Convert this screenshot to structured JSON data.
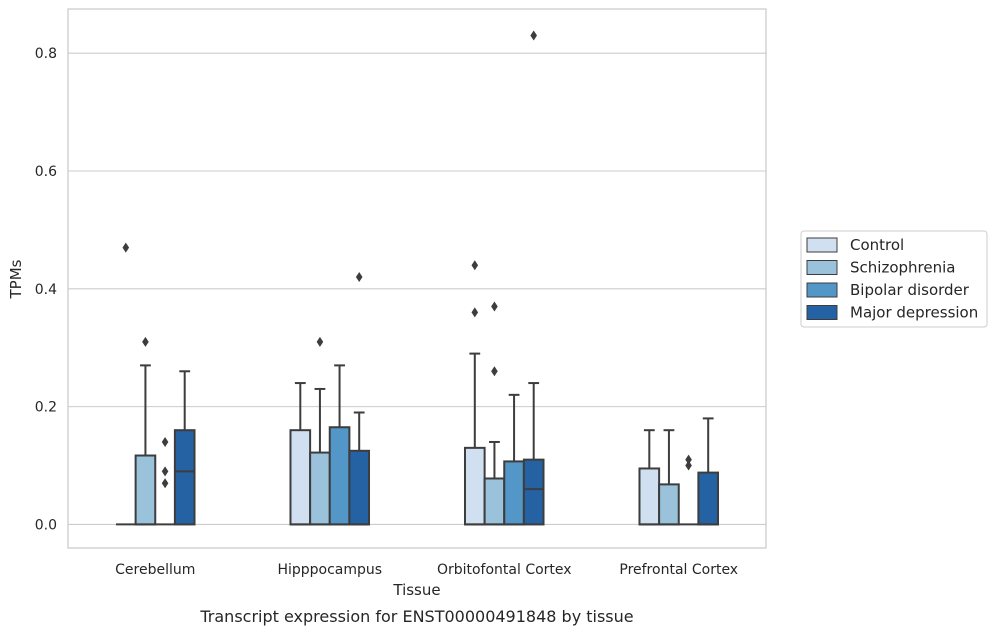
{
  "caption": "Transcript expression for ENST00000491848 by tissue",
  "chart_data": {
    "type": "box",
    "title": "",
    "xlabel": "Tissue",
    "ylabel": "TPMs",
    "ylim": [
      -0.04,
      0.875
    ],
    "yticks": [
      0.0,
      0.2,
      0.4,
      0.6,
      0.8
    ],
    "ytick_labels": [
      "0.0",
      "0.2",
      "0.4",
      "0.6",
      "0.8"
    ],
    "grid": "horizontal",
    "legend_placement": "right-outside",
    "categories": [
      "Cerebellum",
      "Hipppocampus",
      "Orbitofontal Cortex",
      "Prefrontal Cortex"
    ],
    "series": [
      {
        "name": "Control",
        "color": "#d1e0f0",
        "boxes": [
          {
            "whislo": 0,
            "q1": 0,
            "med": 0,
            "q3": 0,
            "whishi": 0,
            "fliers": [
              0.47
            ]
          },
          {
            "whislo": 0,
            "q1": 0,
            "med": 0,
            "q3": 0.16,
            "whishi": 0.24,
            "fliers": []
          },
          {
            "whislo": 0,
            "q1": 0,
            "med": 0,
            "q3": 0.13,
            "whishi": 0.29,
            "fliers": [
              0.36,
              0.44
            ]
          },
          {
            "whislo": 0,
            "q1": 0,
            "med": 0,
            "q3": 0.095,
            "whishi": 0.16,
            "fliers": []
          }
        ]
      },
      {
        "name": "Schizophrenia",
        "color": "#9ac3db",
        "boxes": [
          {
            "whislo": 0,
            "q1": 0,
            "med": 0,
            "q3": 0.117,
            "whishi": 0.27,
            "fliers": [
              0.31
            ]
          },
          {
            "whislo": 0,
            "q1": 0,
            "med": 0,
            "q3": 0.122,
            "whishi": 0.23,
            "fliers": [
              0.31
            ]
          },
          {
            "whislo": 0,
            "q1": 0,
            "med": 0,
            "q3": 0.078,
            "whishi": 0.14,
            "fliers": [
              0.26,
              0.37
            ]
          },
          {
            "whislo": 0,
            "q1": 0,
            "med": 0,
            "q3": 0.068,
            "whishi": 0.16,
            "fliers": []
          }
        ]
      },
      {
        "name": "Bipolar disorder",
        "color": "#5297c7",
        "boxes": [
          {
            "whislo": 0,
            "q1": 0,
            "med": 0,
            "q3": 0,
            "whishi": 0,
            "fliers": [
              0.07,
              0.09,
              0.14
            ]
          },
          {
            "whislo": 0,
            "q1": 0,
            "med": 0,
            "q3": 0.165,
            "whishi": 0.27,
            "fliers": []
          },
          {
            "whislo": 0,
            "q1": 0,
            "med": 0,
            "q3": 0.107,
            "whishi": 0.22,
            "fliers": []
          },
          {
            "whislo": 0,
            "q1": 0,
            "med": 0,
            "q3": 0,
            "whishi": 0,
            "fliers": [
              0.1,
              0.11
            ]
          }
        ]
      },
      {
        "name": "Major depression",
        "color": "#2462a3",
        "boxes": [
          {
            "whislo": 0,
            "q1": 0,
            "med": 0.09,
            "q3": 0.16,
            "whishi": 0.26,
            "fliers": []
          },
          {
            "whislo": 0,
            "q1": 0,
            "med": 0,
            "q3": 0.125,
            "whishi": 0.19,
            "fliers": [
              0.42
            ]
          },
          {
            "whislo": 0,
            "q1": 0,
            "med": 0.06,
            "q3": 0.11,
            "whishi": 0.24,
            "fliers": [
              0.83
            ]
          },
          {
            "whislo": 0,
            "q1": 0,
            "med": 0,
            "q3": 0.088,
            "whishi": 0.18,
            "fliers": []
          }
        ]
      }
    ]
  }
}
